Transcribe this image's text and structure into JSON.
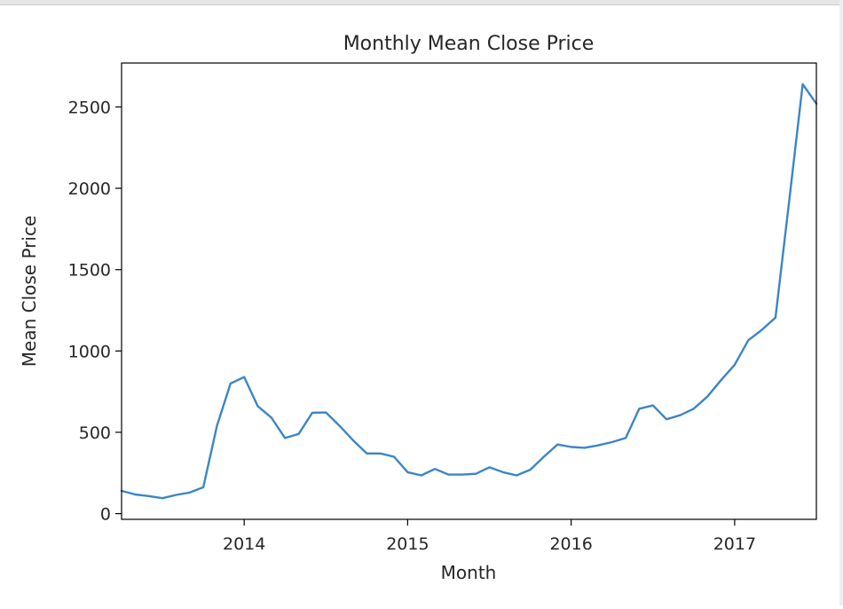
{
  "chart_data": {
    "type": "line",
    "title": "Monthly Mean Close Price",
    "xlabel": "Month",
    "ylabel": "Mean Close Price",
    "xlim": [
      "2013-04",
      "2017-07"
    ],
    "ylim": [
      -35,
      2770
    ],
    "x_ticks": [
      "2014",
      "2015",
      "2016",
      "2017"
    ],
    "y_ticks": [
      0,
      500,
      1000,
      1500,
      2000,
      2500
    ],
    "grid": false,
    "color": "#3d85c6",
    "series": [
      {
        "x": [
          "2013-04",
          "2013-05",
          "2013-06",
          "2013-07",
          "2013-08",
          "2013-09",
          "2013-10",
          "2013-11",
          "2013-12",
          "2014-01",
          "2014-02",
          "2014-03",
          "2014-04",
          "2014-05",
          "2014-06",
          "2014-07",
          "2014-08",
          "2014-09",
          "2014-10",
          "2014-11",
          "2014-12",
          "2015-01",
          "2015-02",
          "2015-03",
          "2015-04",
          "2015-05",
          "2015-06",
          "2015-07",
          "2015-08",
          "2015-09",
          "2015-10",
          "2015-11",
          "2015-12",
          "2016-01",
          "2016-02",
          "2016-03",
          "2016-04",
          "2016-05",
          "2016-06",
          "2016-07",
          "2016-08",
          "2016-09",
          "2016-10",
          "2016-11",
          "2016-12",
          "2017-01",
          "2017-02",
          "2017-03",
          "2017-04",
          "2017-05",
          "2017-06",
          "2017-07"
        ],
        "values": [
          140,
          118,
          108,
          95,
          115,
          130,
          162,
          540,
          800,
          840,
          660,
          590,
          465,
          490,
          620,
          622,
          540,
          450,
          370,
          370,
          350,
          255,
          235,
          275,
          240,
          240,
          245,
          285,
          255,
          235,
          270,
          350,
          425,
          410,
          405,
          420,
          440,
          465,
          645,
          665,
          580,
          605,
          645,
          720,
          820,
          915,
          1065,
          1130,
          1205,
          1920,
          2640,
          2520
        ]
      }
    ]
  }
}
